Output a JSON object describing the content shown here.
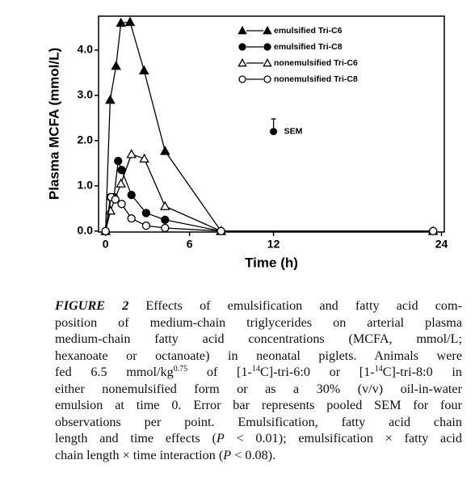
{
  "chart_data": {
    "type": "line",
    "x_label": "Time (h)",
    "y_label": "Plasma MCFA (mmol/L)",
    "xlim": [
      -0.5,
      24.2
    ],
    "ylim": [
      -0.02,
      4.75
    ],
    "xticks": [
      0,
      6,
      12,
      24
    ],
    "yticks": [
      {
        "value": 0,
        "label": "0.0"
      },
      {
        "value": 1,
        "label": "1.0"
      },
      {
        "value": 2,
        "label": "2.0"
      },
      {
        "value": 3,
        "label": "3.0"
      },
      {
        "value": 4,
        "label": "4.0"
      }
    ],
    "series": [
      {
        "name": "emulsified Tri-C6",
        "color": "#000000",
        "marker": "triangle",
        "filled": true,
        "x": [
          0,
          0.33,
          0.75,
          1.1,
          1.75,
          2.75,
          4.25,
          8.25,
          23.4
        ],
        "values": [
          0,
          2.9,
          3.65,
          4.6,
          4.62,
          3.55,
          1.77,
          0,
          0
        ]
      },
      {
        "name": "emulsified Tri-C8",
        "color": "#000000",
        "marker": "circle",
        "filled": true,
        "x": [
          0,
          0.35,
          0.6,
          0.9,
          1.15,
          1.85,
          2.9,
          4.25,
          8.25,
          23.4
        ],
        "values": [
          0,
          0.75,
          0.75,
          1.55,
          1.35,
          0.8,
          0.4,
          0.25,
          0,
          0
        ]
      },
      {
        "name": "nonemulsified Tri-C6",
        "color": "#000000",
        "marker": "triangle",
        "filled": false,
        "x": [
          0,
          0.35,
          1.1,
          1.85,
          2.77,
          4.25,
          8.25
        ],
        "values": [
          0,
          0.45,
          1.05,
          1.7,
          1.6,
          0.55,
          0
        ]
      },
      {
        "name": "nonemulsified Tri-C8",
        "color": "#000000",
        "marker": "circle",
        "filled": false,
        "x": [
          0,
          0.4,
          0.7,
          1.15,
          1.85,
          2.9,
          4.25,
          8.25,
          23.4
        ],
        "values": [
          0,
          0.75,
          0.7,
          0.6,
          0.28,
          0.12,
          0.07,
          0,
          0
        ]
      }
    ],
    "sem": {
      "label": "SEM",
      "x": 12,
      "value": 2.2,
      "error": 0.28
    }
  },
  "caption": {
    "lines": [
      [
        {
          "text": "FIGURE 2",
          "style": "bold-italic"
        },
        " Effects of emulsification and fatty acid com-"
      ],
      [
        "position of medium-chain triglycerides on arterial plasma"
      ],
      [
        "medium-chain fatty acid concentrations (MCFA, mmol/L;"
      ],
      [
        "hexanoate or octanoate) in neonatal piglets. Animals were"
      ],
      [
        "fed 6.5 mmol/kg",
        {
          "text": "0.75",
          "style": "sup"
        },
        " of [1-",
        {
          "text": "14",
          "style": "sup"
        },
        "C]-tri-6:0 or [1-",
        {
          "text": "14",
          "style": "sup"
        },
        "C]-tri-8:0 in"
      ],
      [
        "either nonemulsified form or as a 30% (v/v) oil-in-water"
      ],
      [
        "emulsion at time 0. Error bar represents pooled SEM for four"
      ],
      [
        "observations per point. Emulsification, fatty acid chain"
      ],
      [
        "length and time effects (",
        {
          "text": "P",
          "style": "italic"
        },
        " < 0.01); emulsification × fatty acid"
      ],
      [
        "chain length × time interaction (",
        {
          "text": "P",
          "style": "italic"
        },
        " < 0.08)."
      ]
    ]
  }
}
